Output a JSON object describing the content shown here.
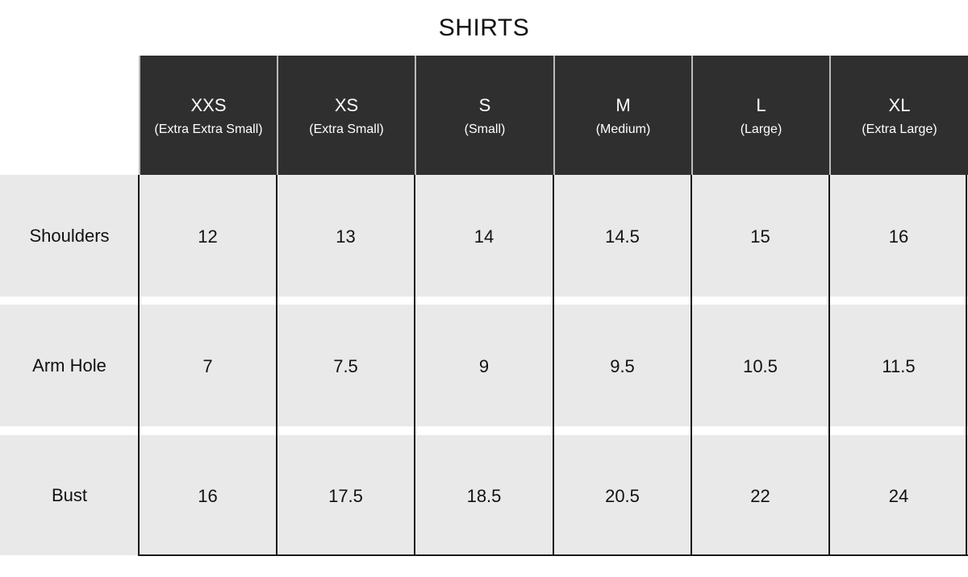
{
  "title": "SHIRTS",
  "sizes": [
    {
      "code": "XXS",
      "name": "(Extra Extra Small)"
    },
    {
      "code": "XS",
      "name": "(Extra Small)"
    },
    {
      "code": "S",
      "name": "(Small)"
    },
    {
      "code": "M",
      "name": "(Medium)"
    },
    {
      "code": "L",
      "name": "(Large)"
    },
    {
      "code": "XL",
      "name": "(Extra Large)"
    }
  ],
  "rows": [
    {
      "label": "Shoulders",
      "values": [
        "12",
        "13",
        "14",
        "14.5",
        "15",
        "16"
      ]
    },
    {
      "label": "Arm Hole",
      "values": [
        "7",
        "7.5",
        "9",
        "9.5",
        "10.5",
        "11.5"
      ]
    },
    {
      "label": "Bust",
      "values": [
        "16",
        "17.5",
        "18.5",
        "20.5",
        "22",
        "24"
      ]
    }
  ],
  "colors": {
    "header_bg": "#2f2f2f",
    "cell_bg": "#e9e9e9"
  }
}
